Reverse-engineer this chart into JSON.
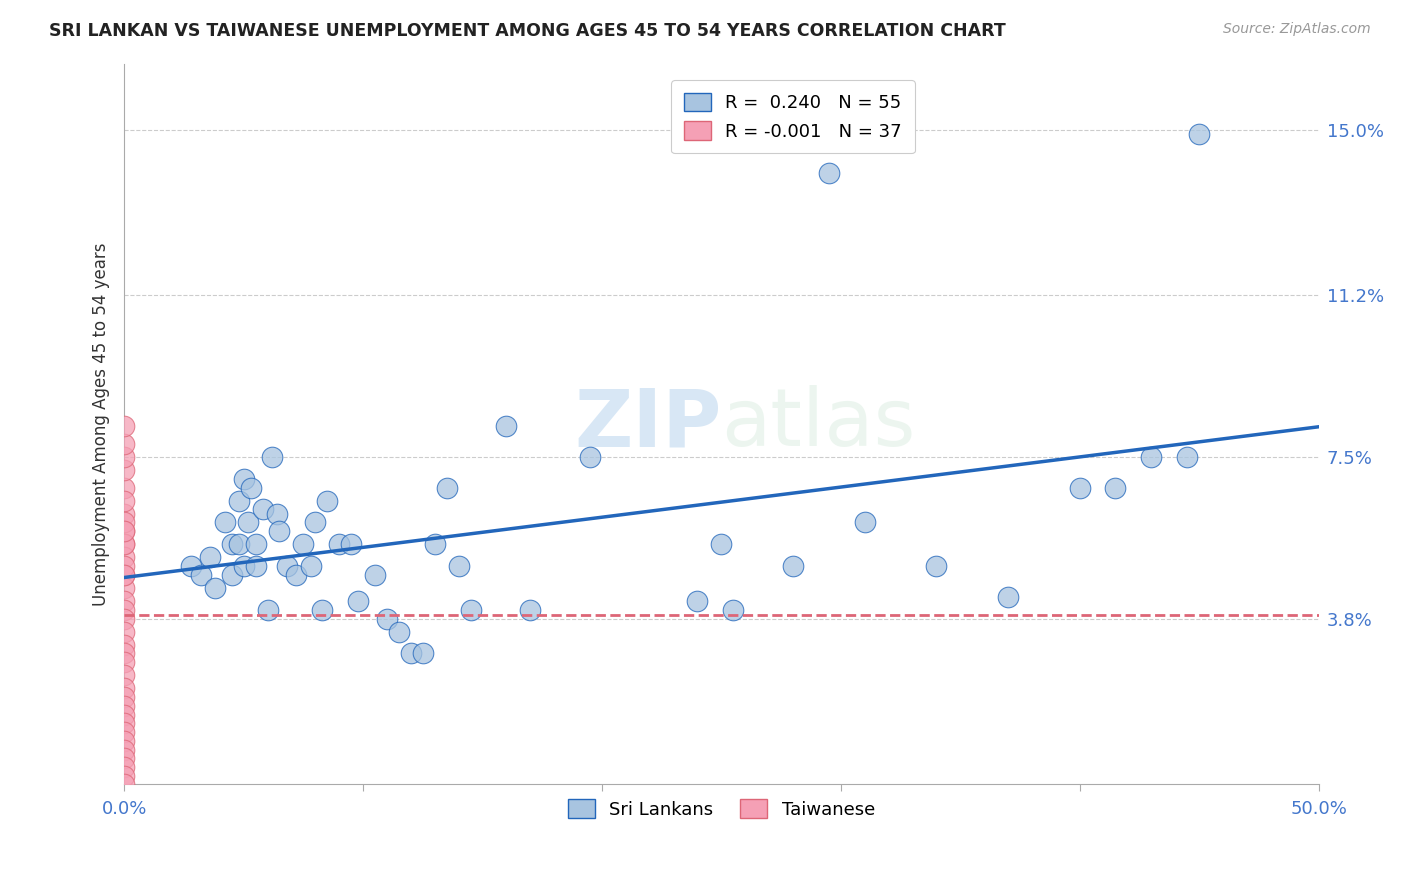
{
  "title": "SRI LANKAN VS TAIWANESE UNEMPLOYMENT AMONG AGES 45 TO 54 YEARS CORRELATION CHART",
  "source": "Source: ZipAtlas.com",
  "ylabel": "Unemployment Among Ages 45 to 54 years",
  "xlim": [
    0.0,
    0.5
  ],
  "ylim": [
    0.0,
    0.165
  ],
  "xtick_positions": [
    0.0,
    0.1,
    0.2,
    0.3,
    0.4,
    0.5
  ],
  "xticklabels": [
    "0.0%",
    "",
    "",
    "",
    "",
    "50.0%"
  ],
  "ytick_positions": [
    0.038,
    0.075,
    0.112,
    0.15
  ],
  "ytick_labels": [
    "3.8%",
    "7.5%",
    "11.2%",
    "15.0%"
  ],
  "grid_color": "#cccccc",
  "background_color": "#ffffff",
  "sri_lanka_color": "#a8c4e0",
  "sri_lanka_line_color": "#2266bb",
  "taiwanese_color": "#f5a0b5",
  "taiwanese_line_color": "#dd6677",
  "legend_sri_lanka_r": "0.240",
  "legend_sri_lanka_n": "55",
  "legend_taiwanese_r": "-0.001",
  "legend_taiwanese_n": "37",
  "watermark_zip": "ZIP",
  "watermark_atlas": "atlas",
  "sri_lanka_x": [
    0.028,
    0.032,
    0.036,
    0.038,
    0.042,
    0.045,
    0.045,
    0.048,
    0.048,
    0.05,
    0.05,
    0.052,
    0.053,
    0.055,
    0.055,
    0.058,
    0.06,
    0.062,
    0.064,
    0.065,
    0.068,
    0.072,
    0.075,
    0.078,
    0.08,
    0.083,
    0.085,
    0.09,
    0.095,
    0.098,
    0.105,
    0.11,
    0.115,
    0.12,
    0.125,
    0.13,
    0.135,
    0.14,
    0.145,
    0.16,
    0.17,
    0.195,
    0.24,
    0.25,
    0.255,
    0.28,
    0.295,
    0.31,
    0.34,
    0.37,
    0.4,
    0.415,
    0.43,
    0.445,
    0.45
  ],
  "sri_lanka_y": [
    0.05,
    0.048,
    0.052,
    0.045,
    0.06,
    0.048,
    0.055,
    0.065,
    0.055,
    0.05,
    0.07,
    0.06,
    0.068,
    0.055,
    0.05,
    0.063,
    0.04,
    0.075,
    0.062,
    0.058,
    0.05,
    0.048,
    0.055,
    0.05,
    0.06,
    0.04,
    0.065,
    0.055,
    0.055,
    0.042,
    0.048,
    0.038,
    0.035,
    0.03,
    0.03,
    0.055,
    0.068,
    0.05,
    0.04,
    0.082,
    0.04,
    0.075,
    0.042,
    0.055,
    0.04,
    0.05,
    0.14,
    0.06,
    0.05,
    0.043,
    0.068,
    0.068,
    0.075,
    0.075,
    0.149
  ],
  "taiwanese_x": [
    0.0,
    0.0,
    0.0,
    0.0,
    0.0,
    0.0,
    0.0,
    0.0,
    0.0,
    0.0,
    0.0,
    0.0,
    0.0,
    0.0,
    0.0,
    0.0,
    0.0,
    0.0,
    0.0,
    0.0,
    0.0,
    0.0,
    0.0,
    0.0,
    0.0,
    0.0,
    0.0,
    0.0,
    0.0,
    0.0,
    0.0,
    0.0,
    0.0,
    0.0,
    0.0,
    0.0,
    0.0
  ],
  "taiwanese_y": [
    0.068,
    0.062,
    0.058,
    0.055,
    0.052,
    0.048,
    0.045,
    0.042,
    0.04,
    0.038,
    0.035,
    0.032,
    0.03,
    0.028,
    0.025,
    0.022,
    0.02,
    0.018,
    0.016,
    0.014,
    0.012,
    0.01,
    0.008,
    0.006,
    0.004,
    0.002,
    0.0,
    0.072,
    0.075,
    0.078,
    0.082,
    0.055,
    0.065,
    0.06,
    0.058,
    0.05,
    0.048
  ],
  "tai_trend_y_start": 0.0482,
  "tai_trend_y_end": 0.0478,
  "sri_trend_x_start": 0.028,
  "sri_trend_x_end": 0.45
}
